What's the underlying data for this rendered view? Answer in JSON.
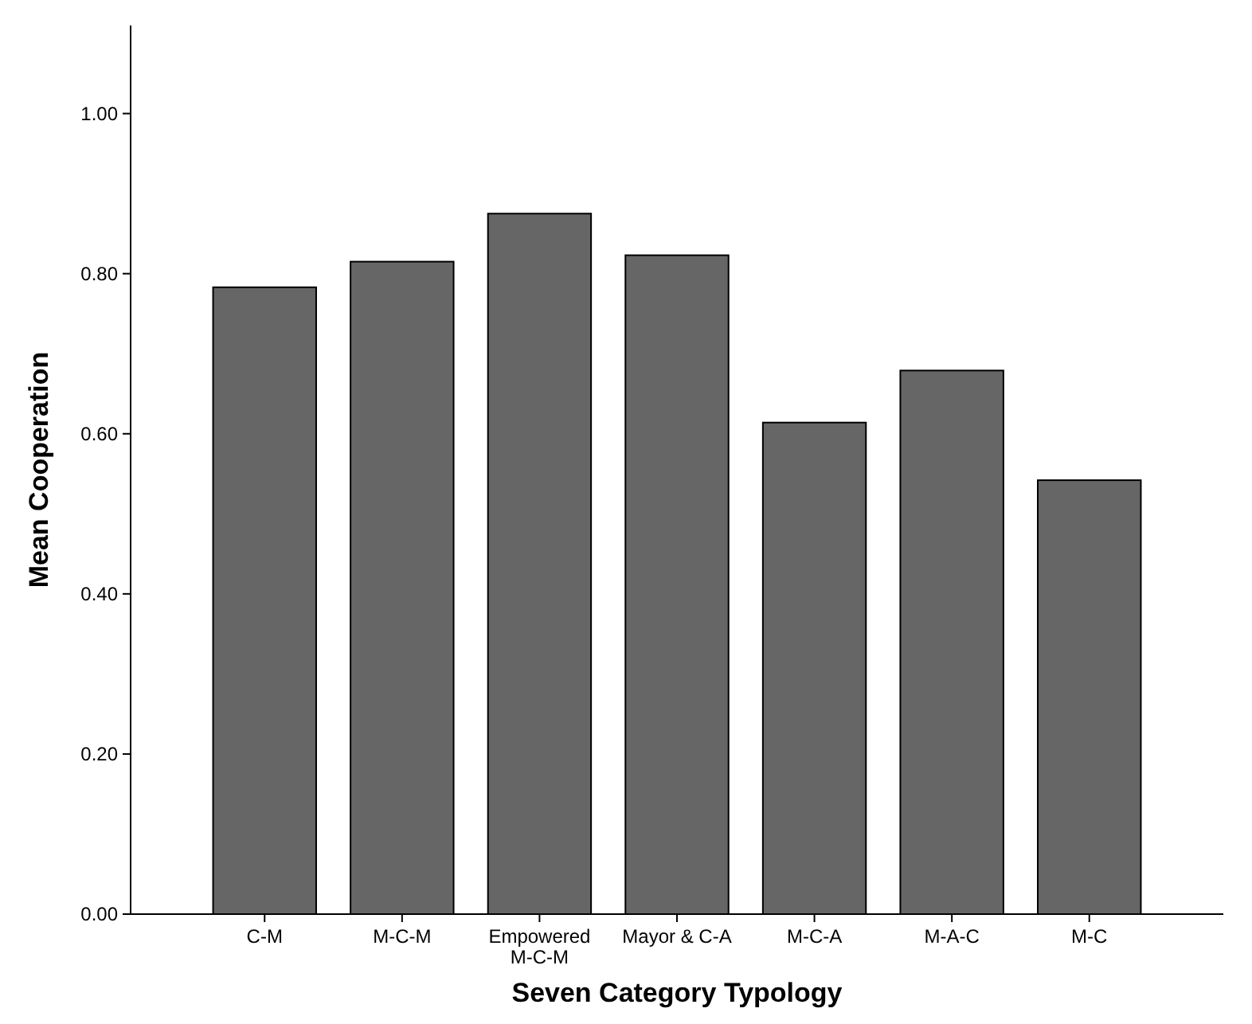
{
  "chart_data": {
    "type": "bar",
    "xlabel": "Seven Category Typology",
    "ylabel": "Mean Cooperation",
    "categories": [
      "C-M",
      "M-C-M",
      "Empowered M-C-M",
      "Mayor & C-A",
      "M-C-A",
      "M-A-C",
      "M-C"
    ],
    "values": [
      0.783,
      0.815,
      0.875,
      0.823,
      0.614,
      0.679,
      0.542
    ],
    "color": "#666666",
    "ylim": [
      0,
      1.11
    ],
    "yticks": [
      {
        "value": 0,
        "label": "0.00"
      },
      {
        "value": 0.2,
        "label": "0.20"
      },
      {
        "value": 0.4,
        "label": "0.40"
      },
      {
        "value": 0.6,
        "label": "0.60"
      },
      {
        "value": 0.8,
        "label": "0.80"
      },
      {
        "value": 1,
        "label": "1.00"
      }
    ],
    "grid": false
  }
}
